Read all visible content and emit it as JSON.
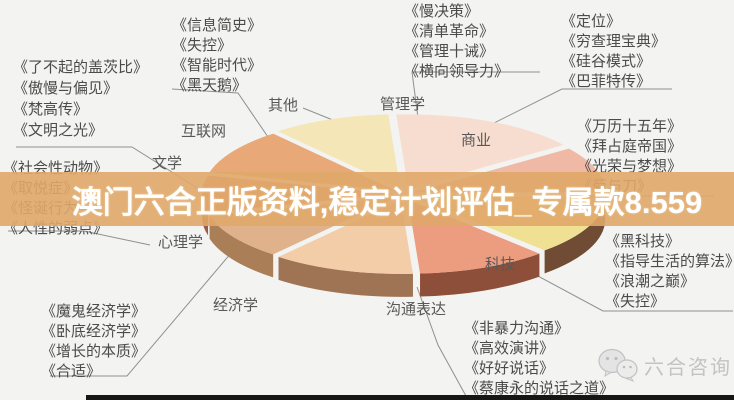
{
  "overlay": {
    "text": "澳门六合正版资料,稳定计划评估_专属款8.559",
    "band_color": "#e0a769",
    "text_color": "#ffffff"
  },
  "watermark": {
    "label": "六合咨询",
    "icon": "wechat-icon",
    "color": "#c3c3c3"
  },
  "chart_data": {
    "type": "pie",
    "title": "",
    "categories": [
      "商业",
      "管理学",
      "其他",
      "互联网",
      "文学",
      "心理学",
      "经济学",
      "沟通表达",
      "科技"
    ],
    "values": [
      10,
      16,
      10,
      10,
      8,
      10,
      12,
      11,
      13
    ],
    "note": "3D exploded pie; slice shares estimated from angles, no numeric labels shown in image",
    "colors": [
      "#f0b9a6",
      "#f7ddcf",
      "#f4e6b7",
      "#e8a877",
      "#d98c72",
      "#e0b28b",
      "#f2cda8",
      "#ec9c7f",
      "#efe093"
    ],
    "side_colors": [
      "#b5826f",
      "#c9a692",
      "#c2ae7e",
      "#aa7244",
      "#9d5a48",
      "#aa7e57",
      "#9e7454",
      "#8d4f3a",
      "#6f4c33"
    ],
    "legend_position": "none",
    "labels_shown_as": "callout-labels"
  },
  "book_groups": [
    {
      "category": "互联网",
      "books": [
        "《信息简史》",
        "《失控》",
        "《智能时代》",
        "《黑天鹅》"
      ]
    },
    {
      "category": "文学",
      "books": [
        "《了不起的盖茨比》",
        "《傲慢与偏见》",
        "《梵高传》",
        "《文明之光》"
      ]
    },
    {
      "category": "管理学",
      "books": [
        "《慢决策》",
        "《清单革命》",
        "《管理十诫》",
        "《横向领导力》"
      ]
    },
    {
      "category": "商业",
      "books": [
        "《定位》",
        "《穷查理宝典》",
        "《硅谷模式》",
        "《巴菲特传》"
      ]
    },
    {
      "category": "",
      "books": [
        "《万历十五年》",
        "《拜占庭帝国》",
        "《光荣与梦想》",
        "《菊与刀》"
      ]
    },
    {
      "category": "科技",
      "books": [
        "《黑科技》",
        "《指导生活的算法》",
        "《浪潮之巅》",
        "《失控》"
      ]
    },
    {
      "category": "沟通表达",
      "books": [
        "《非暴力沟通》",
        "《高效演讲》",
        "《好好说话》",
        "《蔡康永的说话之道》"
      ]
    },
    {
      "category": "经济学",
      "books": [
        "《魔鬼经济学》",
        "《卧底经济学》",
        "《增长的本质》",
        "《合适》"
      ]
    },
    {
      "category": "心理学",
      "books": [
        "《社会性动物》",
        "《取悦症》",
        "《怪诞行为学》",
        "《人性的弱点》"
      ]
    }
  ]
}
